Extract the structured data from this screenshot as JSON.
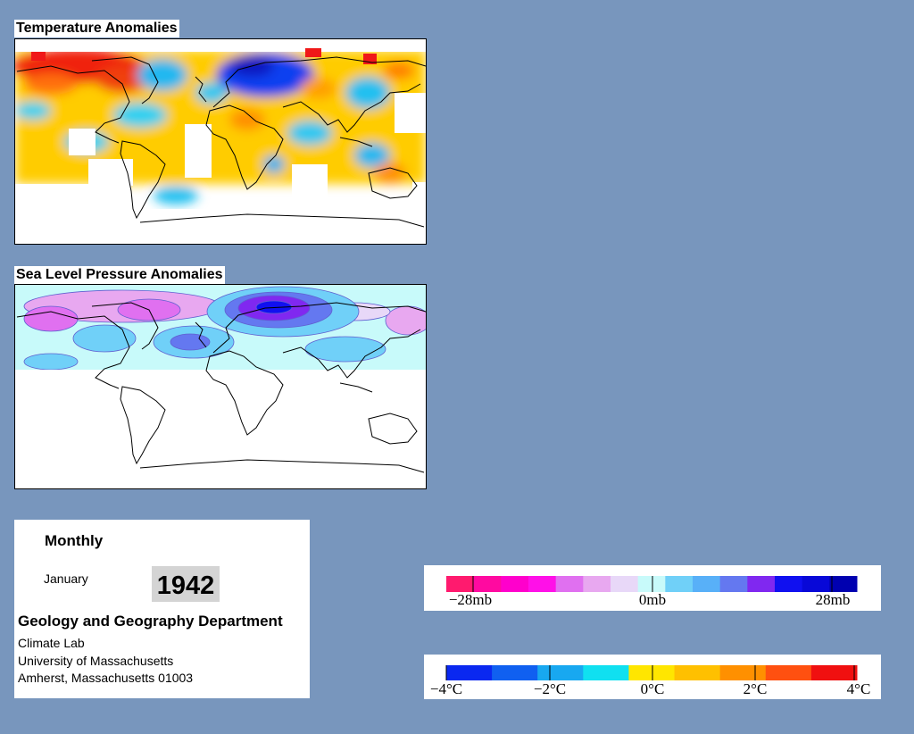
{
  "maps": {
    "temperature": {
      "title": "Temperature Anomalies"
    },
    "pressure": {
      "title": "Sea Level Pressure Anomalies"
    }
  },
  "info": {
    "frequency": "Monthly",
    "month": "January",
    "year": "1942",
    "department": "Geology and Geography Department",
    "line1": "Climate Lab",
    "line2": "University of Massachusetts",
    "line3": "Amherst, Massachusetts 01003"
  },
  "pressure_legend": {
    "labels": [
      "−28mb",
      "0mb",
      "28mb"
    ],
    "colors": [
      "#ff1a6e",
      "#ff0aa0",
      "#ff00cc",
      "#ff10e8",
      "#e070f0",
      "#e8a8f0",
      "#e8d8f8",
      "#c8fafa",
      "#70d0f8",
      "#58b0f8",
      "#6478f0",
      "#8028f0",
      "#1010f0",
      "#0808d8",
      "#0000b0"
    ]
  },
  "temperature_legend": {
    "labels": [
      "−4°C",
      "−2°C",
      "0°C",
      "2°C",
      "4°C"
    ],
    "colors": [
      "#0a28f0",
      "#1060f0",
      "#18a8f0",
      "#10e0f0",
      "#ffe600",
      "#ffc000",
      "#ff9000",
      "#ff5010",
      "#f01010"
    ]
  }
}
